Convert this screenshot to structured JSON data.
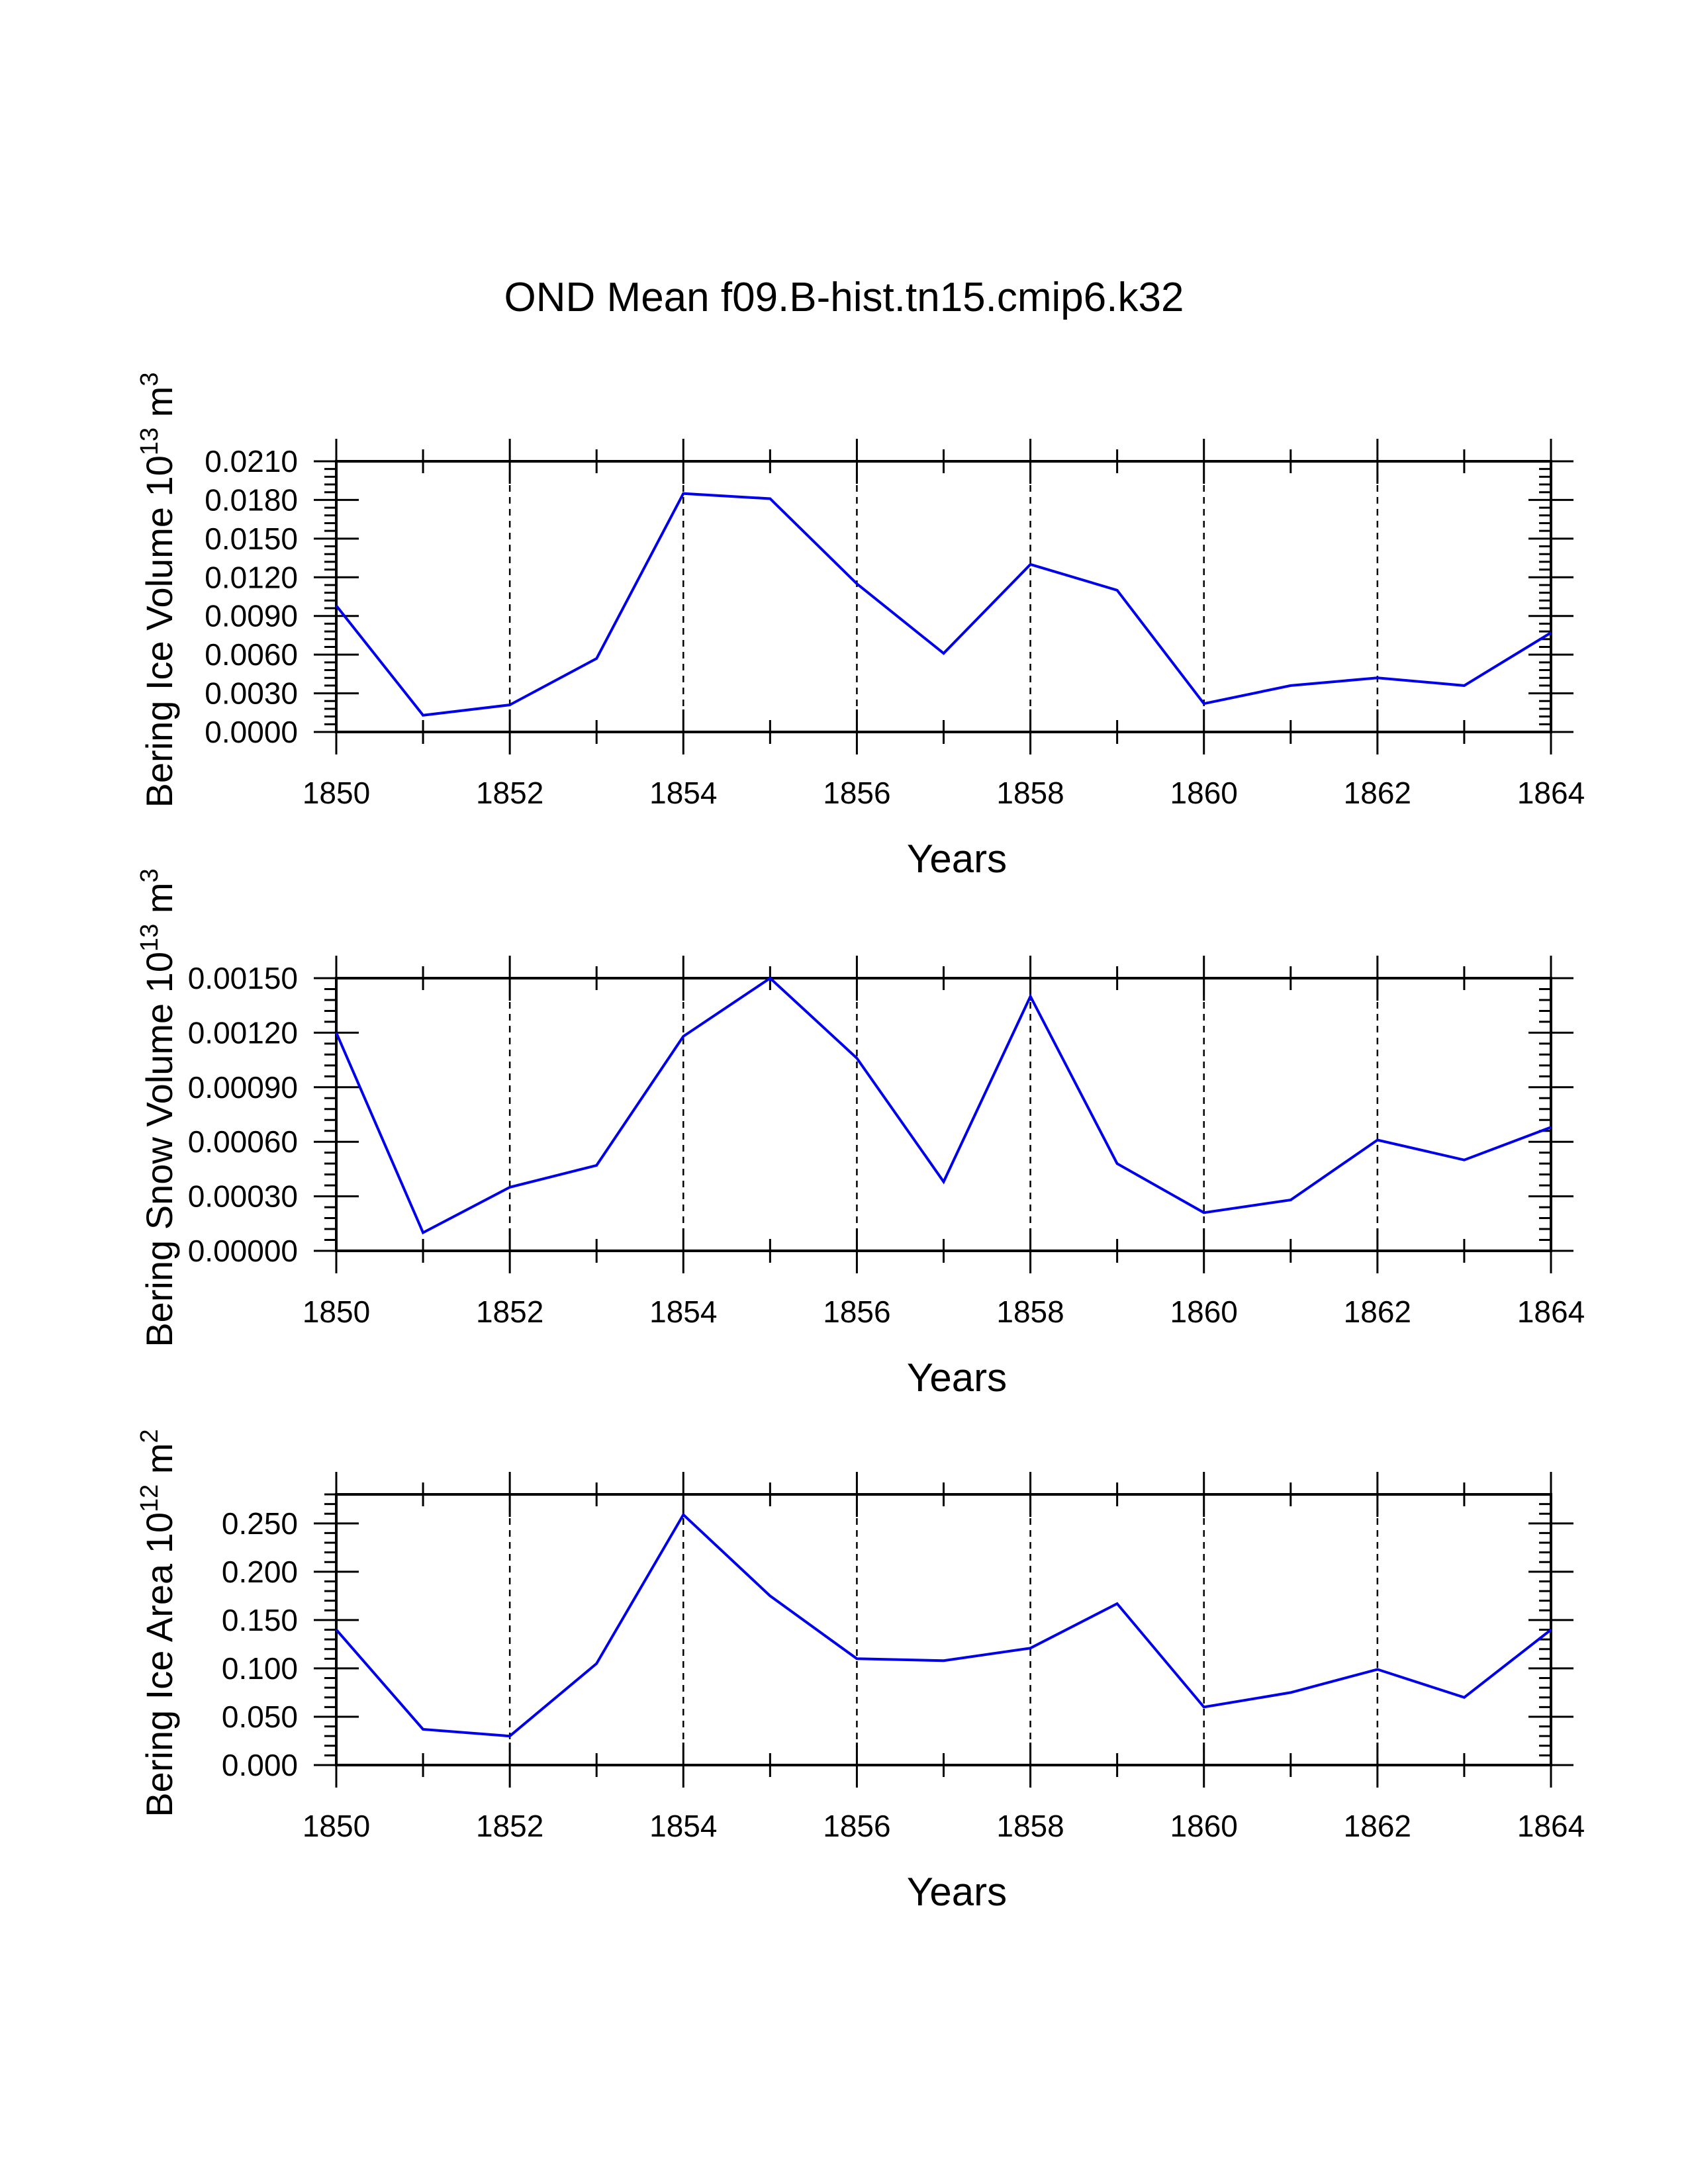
{
  "title": "OND Mean f09.B-hist.tn15.cmip6.k32",
  "colors": {
    "series": "#0000ee",
    "axes": "#000000"
  },
  "chart_data": [
    {
      "type": "line",
      "ylabel": "Bering Ice Volume",
      "ylabel_exp_base": "10",
      "ylabel_exp": "13",
      "ylabel_unit_base": "m",
      "ylabel_unit_exp": "3",
      "xlabel": "Years",
      "xlim": [
        1850,
        1864
      ],
      "ylim": [
        0,
        0.021
      ],
      "x_ticks": [
        "1850",
        "1852",
        "1854",
        "1856",
        "1858",
        "1860",
        "1862",
        "1864"
      ],
      "y_ticks": [
        "0.0000",
        "0.0030",
        "0.0060",
        "0.0090",
        "0.0120",
        "0.0150",
        "0.0180",
        "0.0210"
      ],
      "grid": "dashed vertical lines at labeled years",
      "series": [
        {
          "name": "Bering Ice Volume",
          "x": [
            1850,
            1851,
            1852,
            1853,
            1854,
            1855,
            1856,
            1857,
            1858,
            1859,
            1860,
            1861,
            1862,
            1863,
            1864
          ],
          "values": [
            0.0098,
            0.0013,
            0.0021,
            0.0057,
            0.0185,
            0.0181,
            0.0115,
            0.0061,
            0.013,
            0.011,
            0.0022,
            0.0036,
            0.0042,
            0.0036,
            0.0077
          ]
        }
      ]
    },
    {
      "type": "line",
      "ylabel": "Bering Snow Volume",
      "ylabel_exp_base": "10",
      "ylabel_exp": "13",
      "ylabel_unit_base": "m",
      "ylabel_unit_exp": "3",
      "xlabel": "Years",
      "xlim": [
        1850,
        1864
      ],
      "ylim": [
        0,
        0.0015
      ],
      "x_ticks": [
        "1850",
        "1852",
        "1854",
        "1856",
        "1858",
        "1860",
        "1862",
        "1864"
      ],
      "y_ticks": [
        "0.00000",
        "0.00030",
        "0.00060",
        "0.00090",
        "0.00120",
        "0.00150"
      ],
      "grid": "dashed vertical lines at labeled years",
      "series": [
        {
          "name": "Bering Snow Volume",
          "x": [
            1850,
            1851,
            1852,
            1853,
            1854,
            1855,
            1856,
            1857,
            1858,
            1859,
            1860,
            1861,
            1862,
            1863,
            1864
          ],
          "values": [
            0.0012,
            0.0001,
            0.00035,
            0.00047,
            0.00118,
            0.0015,
            0.00106,
            0.00038,
            0.0014,
            0.00048,
            0.00021,
            0.00028,
            0.00061,
            0.0005,
            0.00068
          ]
        }
      ]
    },
    {
      "type": "line",
      "ylabel": "Bering Ice Area",
      "ylabel_exp_base": "10",
      "ylabel_exp": "12",
      "ylabel_unit_base": "m",
      "ylabel_unit_exp": "2",
      "xlabel": "Years",
      "xlim": [
        1850,
        1864
      ],
      "ylim": [
        0,
        0.28
      ],
      "x_ticks": [
        "1850",
        "1852",
        "1854",
        "1856",
        "1858",
        "1860",
        "1862",
        "1864"
      ],
      "y_ticks": [
        "0.000",
        "0.050",
        "0.100",
        "0.150",
        "0.200",
        "0.250"
      ],
      "grid": "dashed vertical lines at labeled years",
      "series": [
        {
          "name": "Bering Ice Area",
          "x": [
            1850,
            1851,
            1852,
            1853,
            1854,
            1855,
            1856,
            1857,
            1858,
            1859,
            1860,
            1861,
            1862,
            1863,
            1864
          ],
          "values": [
            0.14,
            0.037,
            0.03,
            0.105,
            0.259,
            0.175,
            0.11,
            0.108,
            0.121,
            0.167,
            0.06,
            0.075,
            0.099,
            0.07,
            0.14
          ]
        }
      ]
    }
  ]
}
